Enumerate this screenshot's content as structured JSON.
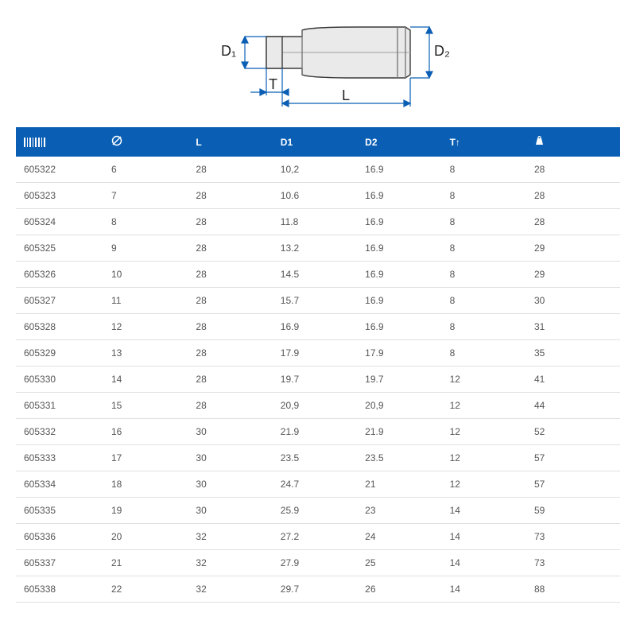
{
  "diagram": {
    "labels": {
      "D1": "D₁",
      "D2": "D₂",
      "T": "T",
      "L": "L"
    },
    "stroke_color": "#0a5fb5",
    "outline_color": "#3a3a3a",
    "fill_color": "#e8e8e8",
    "bg_color": "#ffffff",
    "label_fontsize": 16,
    "label_color": "#222222"
  },
  "table": {
    "header_bg": "#0a5fb5",
    "header_color": "#ffffff",
    "row_border": "#e0e0e0",
    "cell_color": "#555555",
    "columns": [
      {
        "key": "code",
        "label_icon": "barcode",
        "width": "15%"
      },
      {
        "key": "size",
        "label_icon": "circle-line",
        "width": "14%"
      },
      {
        "key": "L",
        "label": "L",
        "width": "14%"
      },
      {
        "key": "D1",
        "label": "D1",
        "width": "14%"
      },
      {
        "key": "D2",
        "label": "D2",
        "width": "14%"
      },
      {
        "key": "T",
        "label": "T↑",
        "width": "14%"
      },
      {
        "key": "weight",
        "label_icon": "weight",
        "width": "15%"
      }
    ],
    "rows": [
      {
        "code": "605322",
        "size": "6",
        "L": "28",
        "D1": "10,2",
        "D2": "16.9",
        "T": "8",
        "weight": "28"
      },
      {
        "code": "605323",
        "size": "7",
        "L": "28",
        "D1": "10.6",
        "D2": "16.9",
        "T": "8",
        "weight": "28"
      },
      {
        "code": "605324",
        "size": "8",
        "L": "28",
        "D1": "11.8",
        "D2": "16.9",
        "T": "8",
        "weight": "28"
      },
      {
        "code": "605325",
        "size": "9",
        "L": "28",
        "D1": "13.2",
        "D2": "16.9",
        "T": "8",
        "weight": "29"
      },
      {
        "code": "605326",
        "size": "10",
        "L": "28",
        "D1": "14.5",
        "D2": "16.9",
        "T": "8",
        "weight": "29"
      },
      {
        "code": "605327",
        "size": "11",
        "L": "28",
        "D1": "15.7",
        "D2": "16.9",
        "T": "8",
        "weight": "30"
      },
      {
        "code": "605328",
        "size": "12",
        "L": "28",
        "D1": "16.9",
        "D2": "16.9",
        "T": "8",
        "weight": "31"
      },
      {
        "code": "605329",
        "size": "13",
        "L": "28",
        "D1": "17.9",
        "D2": "17.9",
        "T": "8",
        "weight": "35"
      },
      {
        "code": "605330",
        "size": "14",
        "L": "28",
        "D1": "19.7",
        "D2": "19.7",
        "T": "12",
        "weight": "41"
      },
      {
        "code": "605331",
        "size": "15",
        "L": "28",
        "D1": "20,9",
        "D2": "20,9",
        "T": "12",
        "weight": "44"
      },
      {
        "code": "605332",
        "size": "16",
        "L": "30",
        "D1": "21.9",
        "D2": "21.9",
        "T": "12",
        "weight": "52"
      },
      {
        "code": "605333",
        "size": "17",
        "L": "30",
        "D1": "23.5",
        "D2": "23.5",
        "T": "12",
        "weight": "57"
      },
      {
        "code": "605334",
        "size": "18",
        "L": "30",
        "D1": "24.7",
        "D2": "21",
        "T": "12",
        "weight": "57"
      },
      {
        "code": "605335",
        "size": "19",
        "L": "30",
        "D1": "25.9",
        "D2": "23",
        "T": "14",
        "weight": "59"
      },
      {
        "code": "605336",
        "size": "20",
        "L": "32",
        "D1": "27.2",
        "D2": "24",
        "T": "14",
        "weight": "73"
      },
      {
        "code": "605337",
        "size": "21",
        "L": "32",
        "D1": "27.9",
        "D2": "25",
        "T": "14",
        "weight": "73"
      },
      {
        "code": "605338",
        "size": "22",
        "L": "32",
        "D1": "29.7",
        "D2": "26",
        "T": "14",
        "weight": "88"
      }
    ]
  }
}
